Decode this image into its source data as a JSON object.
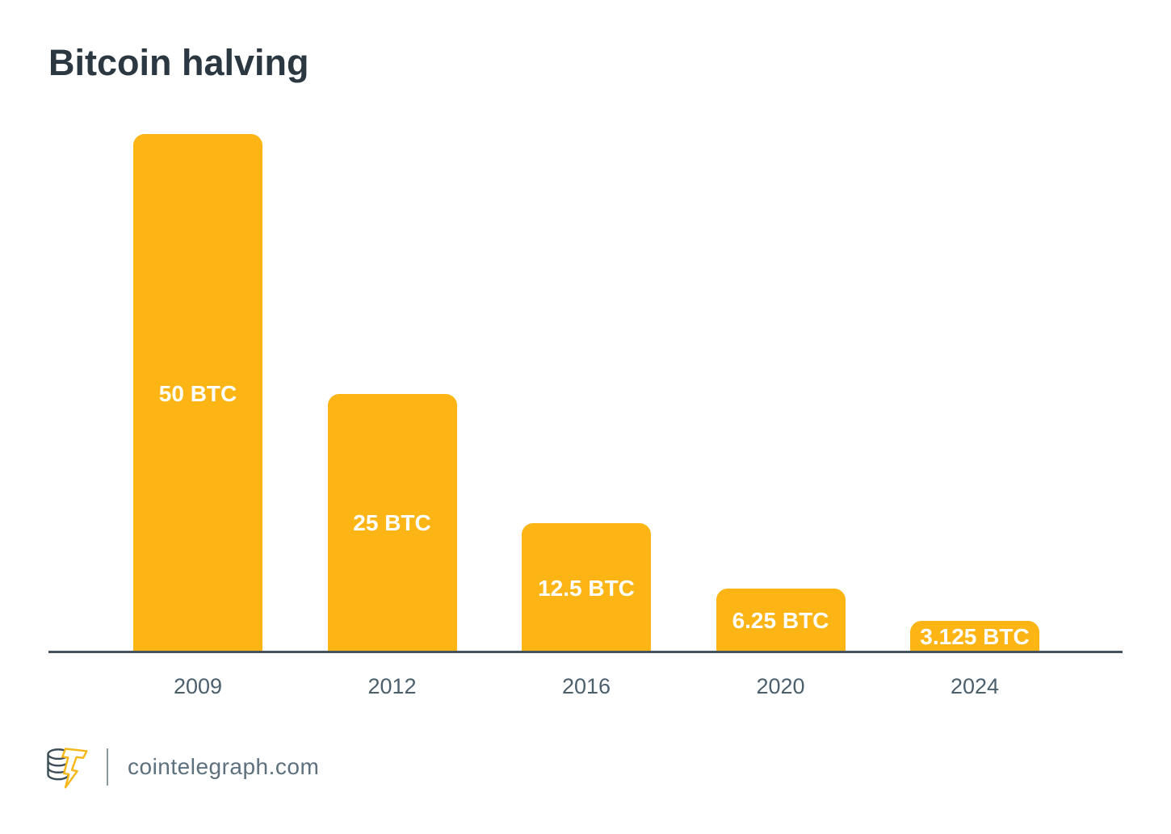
{
  "chart": {
    "title": "Bitcoin halving"
  },
  "chart_data": {
    "type": "bar",
    "title": "Bitcoin halving",
    "categories": [
      "2009",
      "2012",
      "2016",
      "2020",
      "2024"
    ],
    "values": [
      50,
      25,
      12.5,
      6.25,
      3.125
    ],
    "bar_labels": [
      "50 BTC",
      "25 BTC",
      "12.5 BTC",
      "6.25 BTC",
      "3.125 BTC"
    ],
    "xlabel": "",
    "ylabel": "",
    "ylim": [
      0,
      50
    ],
    "grid": false,
    "legend": false,
    "bar_color": "#fdb515",
    "bar_label_color": "#ffffff"
  },
  "colors": {
    "title_text": "#2b3842",
    "axis_line": "#44535e",
    "tick_text": "#4b5f6d",
    "footer_text": "#5d707d",
    "background": "#ffffff",
    "logo_coin_outline": "#3e4e59",
    "logo_bolt": "#f6b818"
  },
  "footer": {
    "site": "cointelegraph.com",
    "logo": "cointelegraph-coin-stack-lightning-bolt"
  }
}
